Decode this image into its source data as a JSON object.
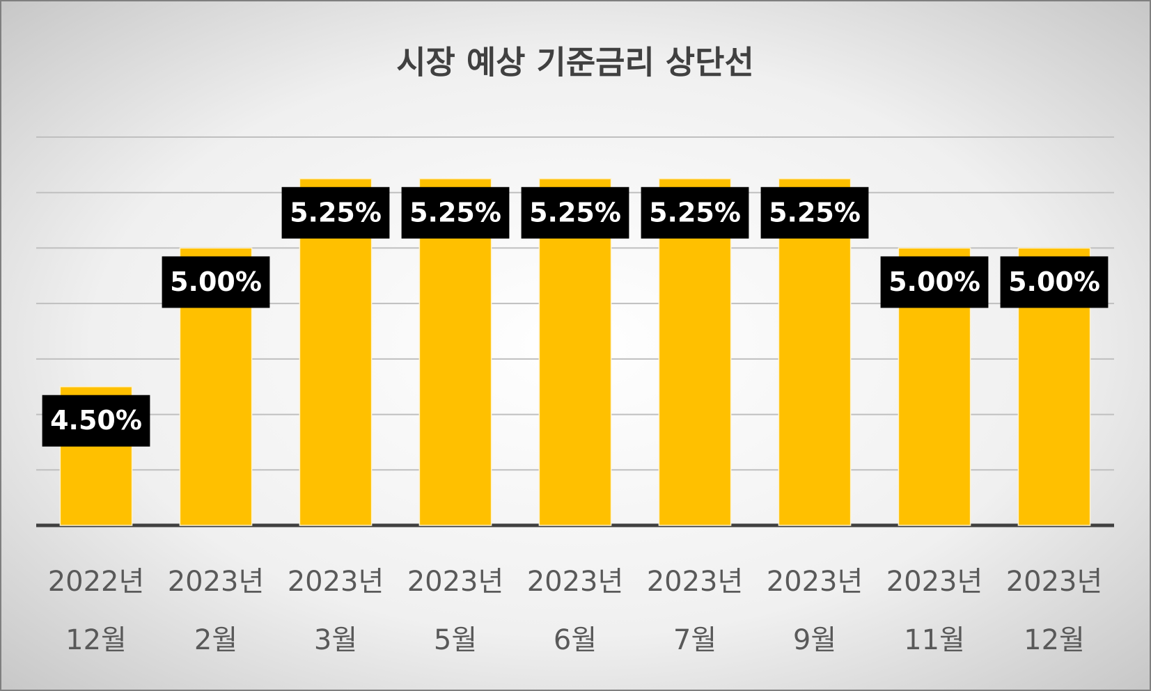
{
  "chart_data": {
    "type": "bar",
    "title": "시장 예상 기준금리 상단선",
    "categories": [
      [
        "2022년",
        "12월"
      ],
      [
        "2023년",
        "2월"
      ],
      [
        "2023년",
        "3월"
      ],
      [
        "2023년",
        "5월"
      ],
      [
        "2023년",
        "6월"
      ],
      [
        "2023년",
        "7월"
      ],
      [
        "2023년",
        "9월"
      ],
      [
        "2023년",
        "11월"
      ],
      [
        "2023년",
        "12월"
      ]
    ],
    "values": [
      4.5,
      5.0,
      5.25,
      5.25,
      5.25,
      5.25,
      5.25,
      5.0,
      5.0
    ],
    "value_labels": [
      "4.50%",
      "5.00%",
      "5.25%",
      "5.25%",
      "5.25%",
      "5.25%",
      "5.25%",
      "5.00%",
      "5.00%"
    ],
    "color": "#ffc000",
    "ylim": [
      4,
      5.4
    ],
    "yticks": [
      4.2,
      4.4,
      4.6,
      4.8,
      5.0,
      5.2,
      5.4
    ],
    "grid": true
  }
}
